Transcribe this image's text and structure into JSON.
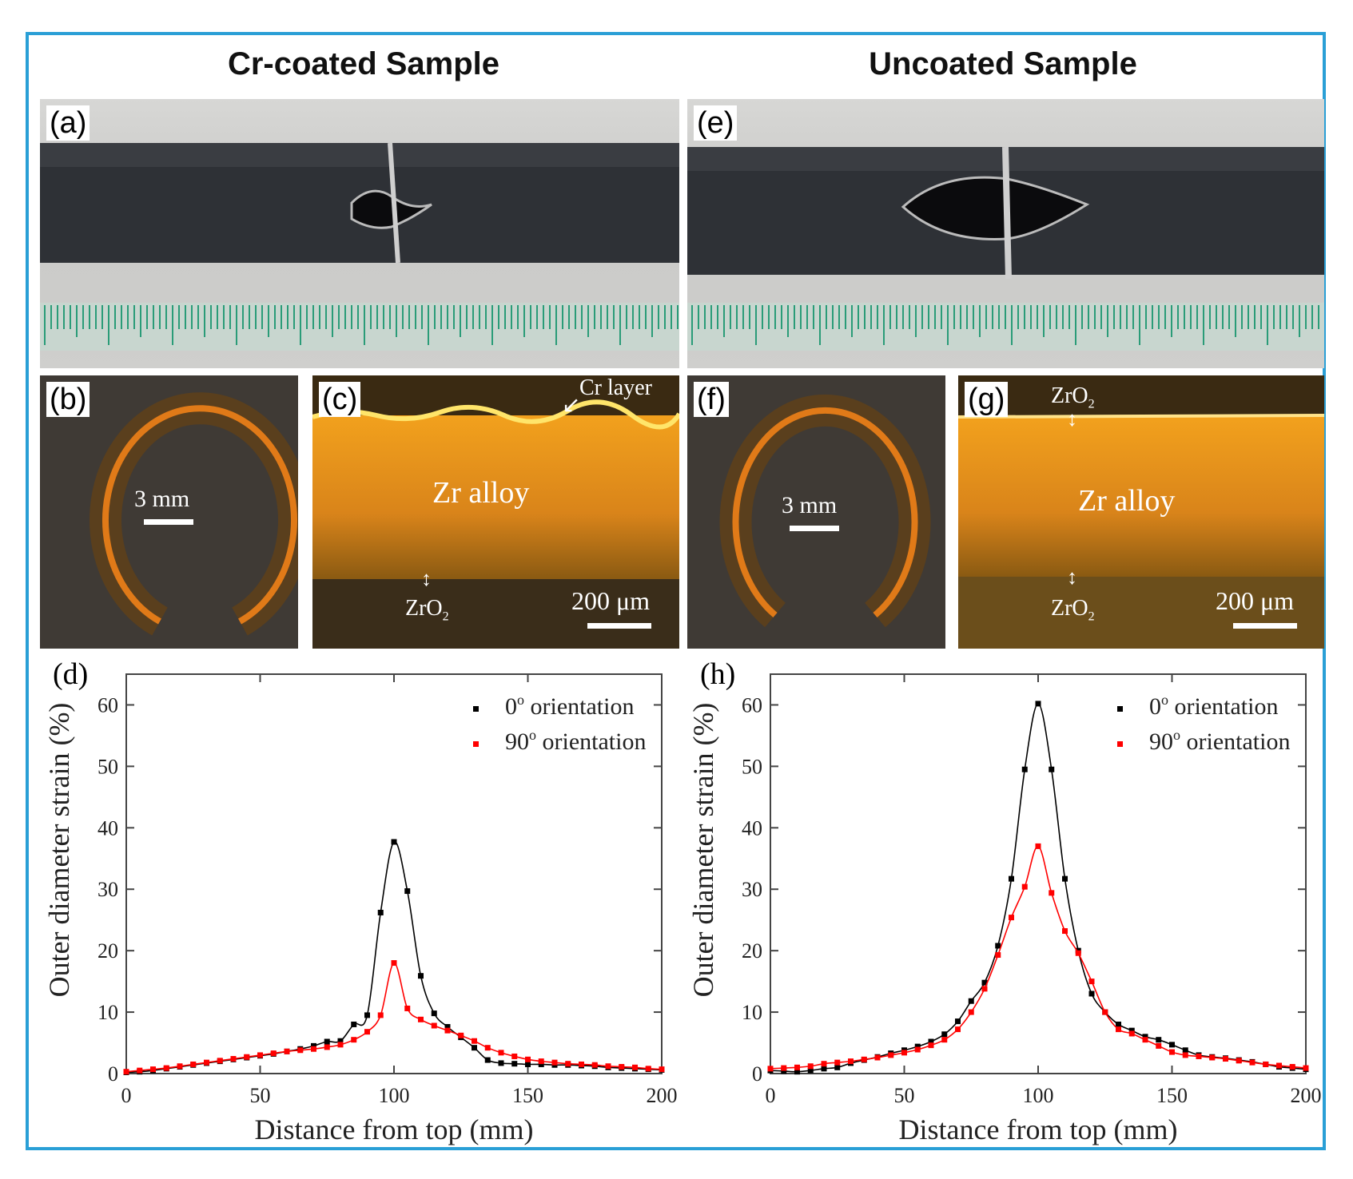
{
  "headings": {
    "left": "Cr-coated Sample",
    "right": "Uncoated Sample"
  },
  "panels": {
    "a": {
      "label": "(a)"
    },
    "b": {
      "label": "(b)",
      "scale": "3 mm"
    },
    "c": {
      "label": "(c)",
      "layer": "Cr layer",
      "material": "Zr alloy",
      "oxide": "ZrO",
      "oxide_sub": "2",
      "scale": "200 μm"
    },
    "e": {
      "label": "(e)"
    },
    "f": {
      "label": "(f)",
      "scale": "3 mm"
    },
    "g": {
      "label": "(g)",
      "oxide_top": "ZrO",
      "oxide_top_sub": "2",
      "material": "Zr alloy",
      "oxide_bottom": "ZrO",
      "oxide_bottom_sub": "2",
      "scale": "200 μm"
    }
  },
  "colors": {
    "frame": "#2a9fd6",
    "series_0": "#000000",
    "series_90": "#ff0000"
  },
  "chart_data": [
    {
      "panel": "(d)",
      "type": "line",
      "xlabel": "Distance from top (mm)",
      "ylabel": "Outer diameter strain (%)",
      "xlim": [
        0,
        200
      ],
      "ylim": [
        0,
        65
      ],
      "xticks": [
        0,
        50,
        100,
        150,
        200
      ],
      "yticks": [
        0,
        10,
        20,
        30,
        40,
        50,
        60
      ],
      "legend": "top-right",
      "series": [
        {
          "name": "0° orientation",
          "label_main": "0",
          "label_sup": "o",
          "label_rest": " orientation",
          "x": [
            0,
            5,
            10,
            15,
            20,
            25,
            30,
            35,
            40,
            45,
            50,
            55,
            60,
            65,
            70,
            75,
            80,
            85,
            90,
            95,
            100,
            105,
            110,
            115,
            120,
            125,
            130,
            135,
            140,
            145,
            150,
            155,
            160,
            165,
            170,
            175,
            180,
            185,
            190,
            195,
            200
          ],
          "y": [
            0.2,
            0.3,
            0.5,
            0.8,
            1.1,
            1.4,
            1.7,
            2.0,
            2.3,
            2.6,
            2.9,
            3.2,
            3.6,
            4.0,
            4.5,
            5.2,
            5.3,
            8.0,
            9.5,
            26.2,
            37.7,
            29.7,
            15.9,
            9.8,
            7.6,
            5.9,
            4.2,
            2.2,
            1.7,
            1.6,
            1.5,
            1.5,
            1.4,
            1.4,
            1.3,
            1.2,
            1.0,
            0.9,
            0.8,
            0.7,
            0.6
          ]
        },
        {
          "name": "90° orientation",
          "label_main": "90",
          "label_sup": "o",
          "label_rest": " orientation",
          "x": [
            0,
            5,
            10,
            15,
            20,
            25,
            30,
            35,
            40,
            45,
            50,
            55,
            60,
            65,
            70,
            75,
            80,
            85,
            90,
            95,
            100,
            105,
            110,
            115,
            120,
            125,
            130,
            135,
            140,
            145,
            150,
            155,
            160,
            165,
            170,
            175,
            180,
            185,
            190,
            195,
            200
          ],
          "y": [
            0.3,
            0.5,
            0.7,
            0.9,
            1.2,
            1.5,
            1.8,
            2.1,
            2.4,
            2.7,
            3.0,
            3.3,
            3.6,
            3.8,
            4.0,
            4.3,
            4.7,
            5.5,
            6.8,
            9.5,
            18.0,
            10.6,
            8.8,
            7.8,
            7.0,
            6.2,
            5.3,
            4.2,
            3.4,
            2.8,
            2.3,
            2.0,
            1.8,
            1.6,
            1.5,
            1.4,
            1.2,
            1.1,
            1.0,
            0.8,
            0.7
          ]
        }
      ]
    },
    {
      "panel": "(h)",
      "type": "line",
      "xlabel": "Distance from top (mm)",
      "ylabel": "Outer diameter strain (%)",
      "xlim": [
        0,
        200
      ],
      "ylim": [
        0,
        65
      ],
      "xticks": [
        0,
        50,
        100,
        150,
        200
      ],
      "yticks": [
        0,
        10,
        20,
        30,
        40,
        50,
        60
      ],
      "legend": "top-right",
      "series": [
        {
          "name": "0° orientation",
          "label_main": "0",
          "label_sup": "o",
          "label_rest": " orientation",
          "x": [
            0,
            5,
            10,
            15,
            20,
            25,
            30,
            35,
            40,
            45,
            50,
            55,
            60,
            65,
            70,
            75,
            80,
            85,
            90,
            95,
            100,
            105,
            110,
            115,
            120,
            125,
            130,
            135,
            140,
            145,
            150,
            155,
            160,
            165,
            170,
            175,
            180,
            185,
            190,
            195,
            200
          ],
          "y": [
            0.5,
            0.4,
            0.3,
            0.5,
            0.8,
            1.0,
            1.7,
            2.2,
            2.7,
            3.3,
            3.8,
            4.4,
            5.2,
            6.4,
            8.5,
            11.8,
            14.8,
            20.8,
            31.7,
            49.5,
            60.2,
            49.5,
            31.7,
            20.0,
            13.0,
            10.0,
            8.0,
            7.0,
            6.0,
            5.5,
            4.7,
            3.8,
            3.0,
            2.7,
            2.5,
            2.2,
            1.9,
            1.5,
            1.1,
            0.9,
            0.7
          ]
        },
        {
          "name": "90° orientation",
          "label_main": "90",
          "label_sup": "o",
          "label_rest": " orientation",
          "x": [
            0,
            5,
            10,
            15,
            20,
            25,
            30,
            35,
            40,
            45,
            50,
            55,
            60,
            65,
            70,
            75,
            80,
            85,
            90,
            95,
            100,
            105,
            110,
            115,
            120,
            125,
            130,
            135,
            140,
            145,
            150,
            155,
            160,
            165,
            170,
            175,
            180,
            185,
            190,
            195,
            200
          ],
          "y": [
            0.8,
            0.9,
            1.0,
            1.2,
            1.6,
            1.8,
            2.0,
            2.3,
            2.6,
            3.0,
            3.4,
            3.9,
            4.6,
            5.5,
            7.2,
            10.0,
            13.8,
            19.3,
            25.4,
            30.4,
            37.0,
            29.4,
            23.2,
            19.6,
            15.0,
            10.0,
            7.2,
            6.5,
            5.5,
            4.5,
            3.5,
            3.0,
            2.8,
            2.6,
            2.4,
            2.1,
            1.8,
            1.5,
            1.3,
            1.1,
            0.9
          ]
        }
      ]
    }
  ]
}
